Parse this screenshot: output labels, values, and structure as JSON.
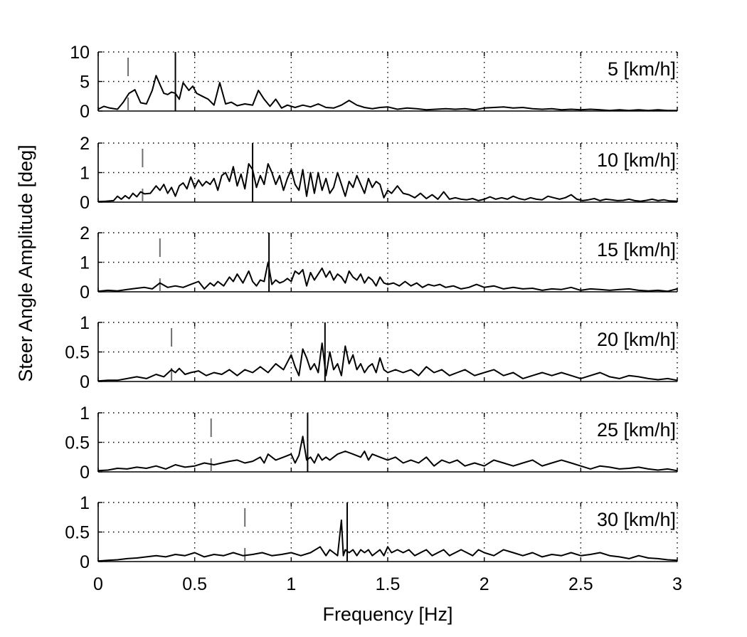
{
  "chart_data": {
    "type": "line",
    "xlabel": "Frequency [Hz]",
    "ylabel": "Steer Angle Amplitude [deg]",
    "xlim": [
      0,
      3
    ],
    "xticks": [
      "0",
      "0.5",
      "1",
      "1.5",
      "2",
      "2.5",
      "3"
    ],
    "grid": true,
    "panels": [
      {
        "label": "5 [km/h]",
        "ylim": [
          0,
          10
        ],
        "yticks": [
          "0",
          "5",
          "10"
        ],
        "ref_solid_x": 0.4,
        "ref_dashed_x": 0.155,
        "x": [
          0,
          0.03,
          0.06,
          0.1,
          0.13,
          0.16,
          0.19,
          0.22,
          0.25,
          0.28,
          0.3,
          0.32,
          0.34,
          0.36,
          0.38,
          0.4,
          0.42,
          0.44,
          0.47,
          0.49,
          0.51,
          0.54,
          0.57,
          0.6,
          0.63,
          0.66,
          0.69,
          0.72,
          0.76,
          0.8,
          0.83,
          0.86,
          0.89,
          0.92,
          0.95,
          0.98,
          1.02,
          1.06,
          1.1,
          1.14,
          1.18,
          1.22,
          1.26,
          1.3,
          1.34,
          1.38,
          1.42,
          1.46,
          1.5,
          1.55,
          1.6,
          1.65,
          1.7,
          1.75,
          1.8,
          1.85,
          1.9,
          1.95,
          2.0,
          2.05,
          2.1,
          2.15,
          2.2,
          2.25,
          2.3,
          2.35,
          2.4,
          2.45,
          2.5,
          2.55,
          2.6,
          2.65,
          2.7,
          2.75,
          2.8,
          2.85,
          2.9,
          2.95,
          3.0
        ],
        "y": [
          0.3,
          0.8,
          0.5,
          0.3,
          1.5,
          3.0,
          3.6,
          1.4,
          1.2,
          3.5,
          6.0,
          4.5,
          3.0,
          2.8,
          3.2,
          3.0,
          2.0,
          4.8,
          3.5,
          4.2,
          3.0,
          2.5,
          2.0,
          1.0,
          4.8,
          1.2,
          1.5,
          0.9,
          1.2,
          1.0,
          3.5,
          2.0,
          0.8,
          2.0,
          0.5,
          1.0,
          0.6,
          1.0,
          0.7,
          1.2,
          0.6,
          0.5,
          1.0,
          1.8,
          1.0,
          0.6,
          0.4,
          0.6,
          0.7,
          0.3,
          0.5,
          0.4,
          0.2,
          0.3,
          0.4,
          0.3,
          0.4,
          0.2,
          0.5,
          0.6,
          0.7,
          0.5,
          0.6,
          0.4,
          0.3,
          0.4,
          0.2,
          0.3,
          0.2,
          0.3,
          0.2,
          0.1,
          0.2,
          0.1,
          0.2,
          0.1,
          0.2,
          0.1,
          0.1
        ]
      },
      {
        "label": "10 [km/h]",
        "ylim": [
          0,
          2
        ],
        "yticks": [
          "0",
          "1",
          "2"
        ],
        "ref_solid_x": 0.8,
        "ref_dashed_x": 0.23,
        "x": [
          0,
          0.04,
          0.08,
          0.1,
          0.12,
          0.14,
          0.16,
          0.18,
          0.2,
          0.22,
          0.24,
          0.27,
          0.3,
          0.32,
          0.34,
          0.36,
          0.38,
          0.4,
          0.42,
          0.44,
          0.46,
          0.48,
          0.5,
          0.52,
          0.54,
          0.56,
          0.58,
          0.6,
          0.62,
          0.64,
          0.66,
          0.68,
          0.7,
          0.72,
          0.74,
          0.76,
          0.78,
          0.8,
          0.82,
          0.84,
          0.86,
          0.88,
          0.9,
          0.92,
          0.94,
          0.96,
          0.98,
          1.0,
          1.02,
          1.04,
          1.06,
          1.08,
          1.1,
          1.12,
          1.14,
          1.16,
          1.18,
          1.2,
          1.22,
          1.24,
          1.26,
          1.28,
          1.3,
          1.32,
          1.34,
          1.36,
          1.38,
          1.4,
          1.42,
          1.44,
          1.46,
          1.48,
          1.5,
          1.52,
          1.55,
          1.58,
          1.61,
          1.64,
          1.67,
          1.7,
          1.73,
          1.76,
          1.79,
          1.82,
          1.85,
          1.88,
          1.91,
          1.94,
          1.97,
          2.0,
          2.03,
          2.06,
          2.09,
          2.12,
          2.15,
          2.18,
          2.21,
          2.24,
          2.27,
          2.3,
          2.33,
          2.36,
          2.39,
          2.42,
          2.45,
          2.48,
          2.51,
          2.54,
          2.57,
          2.6,
          2.63,
          2.66,
          2.69,
          2.72,
          2.75,
          2.78,
          2.81,
          2.84,
          2.87,
          2.9,
          2.93,
          2.96,
          3.0
        ],
        "y": [
          0.02,
          0.03,
          0.05,
          0.2,
          0.1,
          0.22,
          0.12,
          0.3,
          0.18,
          0.35,
          0.28,
          0.3,
          0.55,
          0.4,
          0.6,
          0.3,
          0.5,
          0.2,
          0.55,
          0.65,
          0.45,
          0.85,
          0.5,
          0.75,
          0.55,
          0.7,
          0.6,
          0.8,
          0.4,
          0.9,
          1.0,
          0.7,
          1.2,
          0.55,
          0.95,
          0.45,
          1.3,
          1.1,
          0.5,
          0.9,
          0.6,
          1.3,
          1.0,
          0.6,
          0.9,
          0.4,
          0.8,
          1.1,
          0.6,
          0.4,
          1.1,
          0.2,
          1.0,
          0.3,
          1.0,
          0.4,
          0.8,
          0.3,
          0.5,
          1.0,
          0.6,
          0.2,
          0.7,
          0.5,
          0.9,
          0.6,
          0.3,
          0.8,
          0.5,
          0.7,
          0.6,
          0.15,
          0.4,
          0.3,
          0.55,
          0.3,
          0.25,
          0.15,
          0.3,
          0.12,
          0.25,
          0.1,
          0.35,
          0.1,
          0.15,
          0.1,
          0.08,
          0.12,
          0.05,
          0.1,
          0.18,
          0.1,
          0.15,
          0.1,
          0.2,
          0.12,
          0.08,
          0.15,
          0.1,
          0.08,
          0.2,
          0.15,
          0.1,
          0.15,
          0.25,
          0.1,
          0.05,
          0.08,
          0.12,
          0.05,
          0.1,
          0.08,
          0.05,
          0.06,
          0.1,
          0.05,
          0.03,
          0.06,
          0.1,
          0.05,
          0.08,
          0.04,
          0.03
        ]
      },
      {
        "label": "15 [km/h]",
        "ylim": [
          0,
          2
        ],
        "yticks": [
          "0",
          "1",
          "2"
        ],
        "ref_solid_x": 0.885,
        "ref_dashed_x": 0.32,
        "x": [
          0,
          0.05,
          0.1,
          0.15,
          0.2,
          0.24,
          0.28,
          0.32,
          0.36,
          0.4,
          0.44,
          0.48,
          0.52,
          0.55,
          0.58,
          0.6,
          0.62,
          0.65,
          0.68,
          0.7,
          0.72,
          0.75,
          0.78,
          0.8,
          0.82,
          0.84,
          0.86,
          0.88,
          0.9,
          0.92,
          0.94,
          0.96,
          0.98,
          1.0,
          1.02,
          1.04,
          1.06,
          1.08,
          1.1,
          1.12,
          1.14,
          1.16,
          1.18,
          1.2,
          1.22,
          1.24,
          1.26,
          1.28,
          1.3,
          1.32,
          1.34,
          1.36,
          1.38,
          1.4,
          1.42,
          1.44,
          1.46,
          1.48,
          1.5,
          1.53,
          1.56,
          1.59,
          1.62,
          1.65,
          1.68,
          1.71,
          1.74,
          1.77,
          1.8,
          1.84,
          1.88,
          1.92,
          1.96,
          2.0,
          2.05,
          2.1,
          2.15,
          2.2,
          2.25,
          2.3,
          2.35,
          2.4,
          2.45,
          2.5,
          2.55,
          2.6,
          2.65,
          2.7,
          2.75,
          2.8,
          2.85,
          2.9,
          2.95,
          3.0
        ],
        "y": [
          0.02,
          0.05,
          0.03,
          0.08,
          0.12,
          0.15,
          0.1,
          0.3,
          0.15,
          0.2,
          0.15,
          0.25,
          0.35,
          0.1,
          0.3,
          0.2,
          0.35,
          0.2,
          0.5,
          0.35,
          0.6,
          0.3,
          0.7,
          0.35,
          0.2,
          0.4,
          0.35,
          1.0,
          0.25,
          0.4,
          0.3,
          0.35,
          0.45,
          0.35,
          0.7,
          0.6,
          0.75,
          0.2,
          0.65,
          0.4,
          0.6,
          0.8,
          0.5,
          0.7,
          0.4,
          0.6,
          0.5,
          0.3,
          0.7,
          0.5,
          0.4,
          0.6,
          0.3,
          0.5,
          0.4,
          0.2,
          0.5,
          0.3,
          0.25,
          0.3,
          0.2,
          0.35,
          0.2,
          0.3,
          0.15,
          0.25,
          0.2,
          0.25,
          0.15,
          0.2,
          0.1,
          0.15,
          0.25,
          0.15,
          0.2,
          0.1,
          0.15,
          0.1,
          0.12,
          0.05,
          0.1,
          0.08,
          0.15,
          0.05,
          0.1,
          0.08,
          0.05,
          0.08,
          0.1,
          0.05,
          0.03,
          0.05,
          0.02,
          0.1
        ]
      },
      {
        "label": "20 [km/h]",
        "ylim": [
          0,
          1
        ],
        "yticks": [
          "0",
          "0.5",
          "1"
        ],
        "ref_solid_x": 1.175,
        "ref_dashed_x": 0.38,
        "x": [
          0,
          0.05,
          0.1,
          0.15,
          0.2,
          0.25,
          0.3,
          0.34,
          0.38,
          0.4,
          0.42,
          0.45,
          0.48,
          0.52,
          0.56,
          0.6,
          0.64,
          0.68,
          0.72,
          0.76,
          0.8,
          0.84,
          0.88,
          0.92,
          0.96,
          1.0,
          1.02,
          1.04,
          1.06,
          1.08,
          1.1,
          1.12,
          1.14,
          1.16,
          1.18,
          1.2,
          1.22,
          1.24,
          1.26,
          1.28,
          1.3,
          1.32,
          1.34,
          1.36,
          1.38,
          1.4,
          1.42,
          1.44,
          1.46,
          1.48,
          1.5,
          1.54,
          1.58,
          1.62,
          1.66,
          1.7,
          1.74,
          1.78,
          1.82,
          1.86,
          1.9,
          1.95,
          2.0,
          2.05,
          2.1,
          2.15,
          2.2,
          2.25,
          2.3,
          2.35,
          2.4,
          2.45,
          2.5,
          2.55,
          2.6,
          2.65,
          2.7,
          2.75,
          2.8,
          2.85,
          2.9,
          2.95,
          3.0
        ],
        "y": [
          0.01,
          0.02,
          0.02,
          0.05,
          0.08,
          0.05,
          0.12,
          0.08,
          0.2,
          0.15,
          0.22,
          0.12,
          0.15,
          0.18,
          0.1,
          0.15,
          0.12,
          0.2,
          0.1,
          0.2,
          0.15,
          0.25,
          0.15,
          0.3,
          0.2,
          0.45,
          0.25,
          0.1,
          0.55,
          0.4,
          0.2,
          0.3,
          0.15,
          0.65,
          0.1,
          0.5,
          0.2,
          0.3,
          0.1,
          0.6,
          0.3,
          0.45,
          0.2,
          0.3,
          0.15,
          0.25,
          0.3,
          0.15,
          0.4,
          0.2,
          0.15,
          0.2,
          0.15,
          0.2,
          0.1,
          0.25,
          0.15,
          0.2,
          0.1,
          0.15,
          0.2,
          0.1,
          0.15,
          0.2,
          0.1,
          0.15,
          0.05,
          0.1,
          0.15,
          0.1,
          0.15,
          0.1,
          0.05,
          0.1,
          0.15,
          0.08,
          0.05,
          0.1,
          0.08,
          0.05,
          0.03,
          0.05,
          0.02
        ]
      },
      {
        "label": "25 [km/h]",
        "ylim": [
          0,
          1
        ],
        "yticks": [
          "0",
          "0.5",
          "1"
        ],
        "ref_solid_x": 1.085,
        "ref_dashed_x": 0.585,
        "x": [
          0,
          0.05,
          0.1,
          0.15,
          0.2,
          0.25,
          0.3,
          0.35,
          0.4,
          0.45,
          0.5,
          0.55,
          0.6,
          0.64,
          0.68,
          0.72,
          0.76,
          0.8,
          0.84,
          0.86,
          0.88,
          0.92,
          0.96,
          1.0,
          1.02,
          1.04,
          1.06,
          1.08,
          1.1,
          1.12,
          1.14,
          1.16,
          1.18,
          1.2,
          1.24,
          1.28,
          1.32,
          1.36,
          1.38,
          1.4,
          1.42,
          1.46,
          1.5,
          1.54,
          1.58,
          1.62,
          1.66,
          1.7,
          1.74,
          1.78,
          1.82,
          1.86,
          1.9,
          1.95,
          2.0,
          2.05,
          2.1,
          2.15,
          2.2,
          2.25,
          2.3,
          2.35,
          2.4,
          2.45,
          2.5,
          2.55,
          2.6,
          2.65,
          2.7,
          2.75,
          2.8,
          2.85,
          2.9,
          2.95,
          3.0
        ],
        "y": [
          0.02,
          0.03,
          0.06,
          0.05,
          0.08,
          0.06,
          0.1,
          0.05,
          0.12,
          0.08,
          0.1,
          0.15,
          0.12,
          0.15,
          0.18,
          0.2,
          0.15,
          0.18,
          0.25,
          0.15,
          0.3,
          0.2,
          0.25,
          0.3,
          0.15,
          0.28,
          0.6,
          0.2,
          0.25,
          0.15,
          0.3,
          0.2,
          0.25,
          0.2,
          0.3,
          0.35,
          0.3,
          0.25,
          0.35,
          0.2,
          0.3,
          0.25,
          0.2,
          0.25,
          0.15,
          0.2,
          0.15,
          0.25,
          0.1,
          0.2,
          0.15,
          0.2,
          0.1,
          0.15,
          0.1,
          0.2,
          0.15,
          0.1,
          0.15,
          0.2,
          0.1,
          0.15,
          0.2,
          0.15,
          0.1,
          0.05,
          0.1,
          0.08,
          0.05,
          0.06,
          0.08,
          0.05,
          0.03,
          0.05,
          0.02
        ]
      },
      {
        "label": "30 [km/h]",
        "ylim": [
          0,
          1
        ],
        "yticks": [
          "0",
          "0.5",
          "1"
        ],
        "ref_solid_x": 1.29,
        "ref_dashed_x": 0.76,
        "x": [
          0,
          0.05,
          0.1,
          0.15,
          0.2,
          0.25,
          0.3,
          0.35,
          0.4,
          0.45,
          0.5,
          0.55,
          0.6,
          0.65,
          0.7,
          0.75,
          0.8,
          0.85,
          0.9,
          0.95,
          1.0,
          1.05,
          1.1,
          1.15,
          1.18,
          1.2,
          1.22,
          1.24,
          1.26,
          1.27,
          1.28,
          1.3,
          1.32,
          1.34,
          1.36,
          1.38,
          1.4,
          1.42,
          1.44,
          1.46,
          1.48,
          1.5,
          1.52,
          1.55,
          1.58,
          1.61,
          1.64,
          1.67,
          1.7,
          1.73,
          1.76,
          1.79,
          1.82,
          1.85,
          1.88,
          1.91,
          1.94,
          1.97,
          2.0,
          2.05,
          2.1,
          2.15,
          2.2,
          2.25,
          2.3,
          2.35,
          2.4,
          2.45,
          2.5,
          2.55,
          2.6,
          2.65,
          2.7,
          2.75,
          2.8,
          2.85,
          2.9,
          2.95,
          3.0
        ],
        "y": [
          0.01,
          0.02,
          0.03,
          0.05,
          0.06,
          0.08,
          0.1,
          0.08,
          0.12,
          0.1,
          0.15,
          0.08,
          0.12,
          0.1,
          0.15,
          0.1,
          0.12,
          0.15,
          0.1,
          0.12,
          0.15,
          0.1,
          0.15,
          0.25,
          0.1,
          0.2,
          0.15,
          0.1,
          0.7,
          0.1,
          0.2,
          0.15,
          0.2,
          0.1,
          0.2,
          0.15,
          0.2,
          0.1,
          0.15,
          0.2,
          0.1,
          0.25,
          0.15,
          0.2,
          0.15,
          0.2,
          0.1,
          0.15,
          0.2,
          0.1,
          0.15,
          0.2,
          0.1,
          0.15,
          0.2,
          0.15,
          0.1,
          0.2,
          0.15,
          0.1,
          0.2,
          0.15,
          0.1,
          0.15,
          0.08,
          0.12,
          0.1,
          0.15,
          0.1,
          0.12,
          0.15,
          0.1,
          0.08,
          0.05,
          0.1,
          0.06,
          0.05,
          0.03,
          0.02
        ]
      }
    ]
  }
}
